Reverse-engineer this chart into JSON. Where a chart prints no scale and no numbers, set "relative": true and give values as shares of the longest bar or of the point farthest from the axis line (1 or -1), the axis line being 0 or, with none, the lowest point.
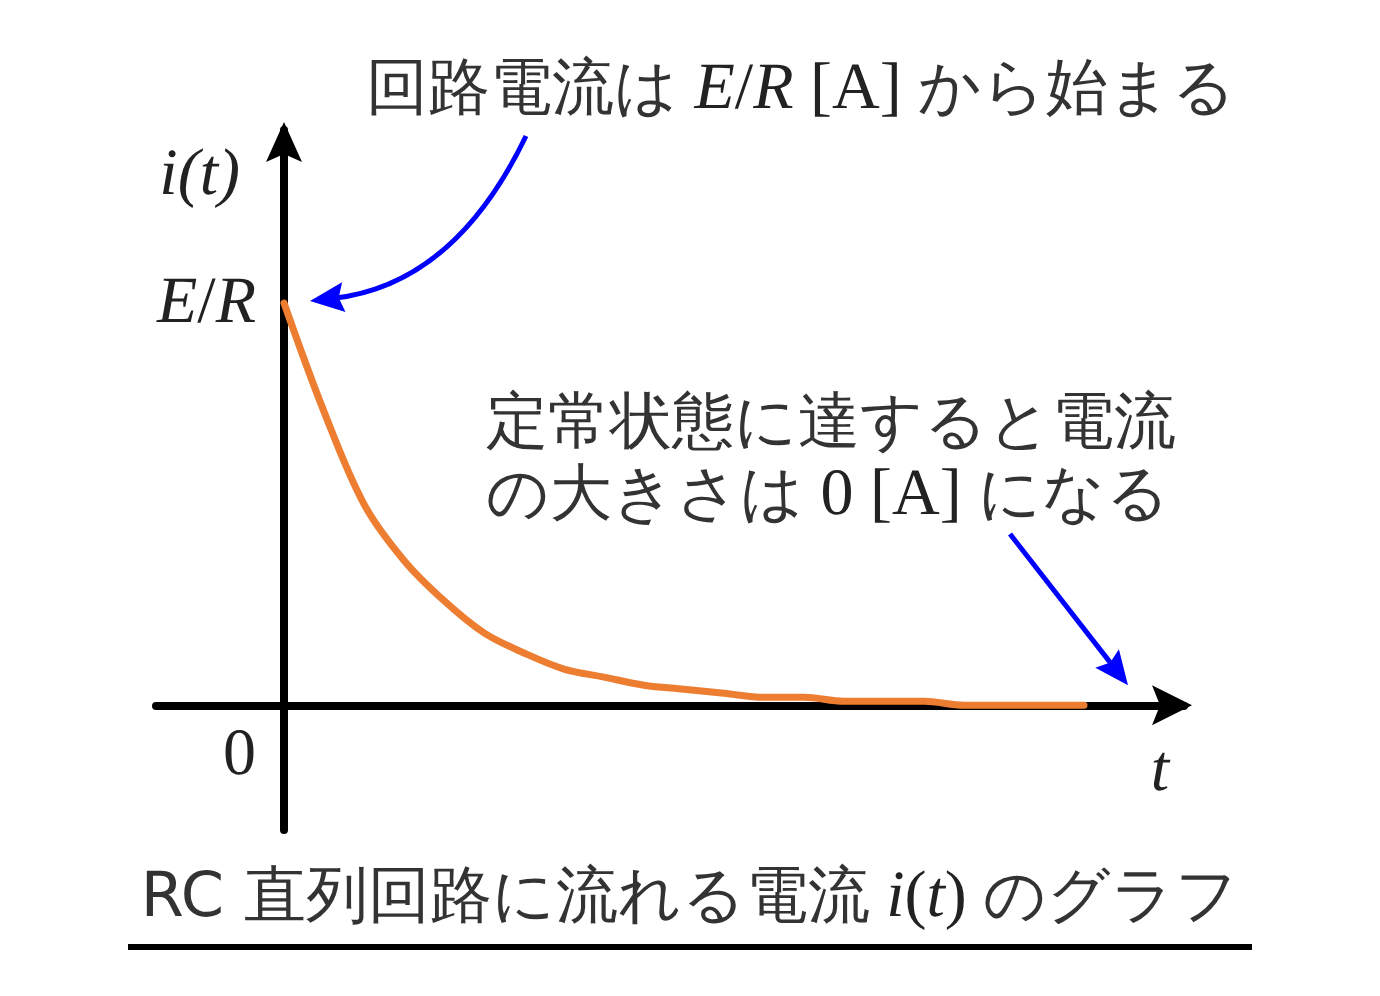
{
  "chart_data": {
    "type": "line",
    "title": "RC 直列回路に流れる電流 i(t) のグラフ",
    "xlabel": "t",
    "ylabel": "i(t)",
    "relative": true,
    "categories": [
      null,
      null,
      null,
      null,
      null,
      null,
      null,
      null,
      null,
      null,
      null,
      null,
      null,
      null,
      null,
      null,
      null,
      null,
      null,
      null,
      null
    ],
    "series": [
      {
        "color": "#ed7d31",
        "values": [
          1,
          0.73,
          0.5,
          0.36,
          0.26,
          0.18,
          0.13,
          0.09,
          0.07,
          0.05,
          0.04,
          0.03,
          0.02,
          0.02,
          0.01,
          0.01,
          0.01,
          0,
          0,
          0,
          0
        ]
      }
    ],
    "annotations": [
      "回路電流は E/R [A] から始まる",
      "定常状態に達すると電流の大きさは 0 [A] になる",
      "E/R",
      "0"
    ],
    "marker": "none"
  }
}
